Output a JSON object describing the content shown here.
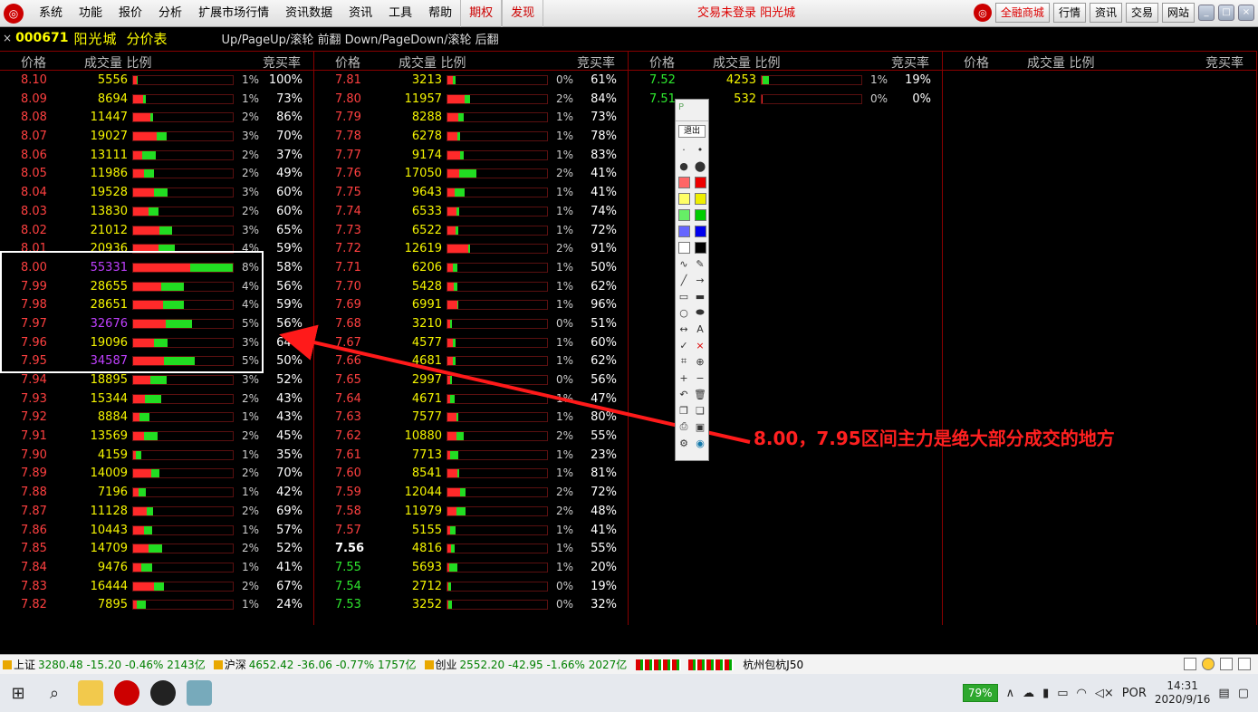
{
  "menubar": {
    "items": [
      "系统",
      "功能",
      "报价",
      "分析",
      "扩展市场行情",
      "资讯数据",
      "资讯",
      "工具",
      "帮助"
    ],
    "red_items": [
      "期权",
      "发现"
    ],
    "login_status": "交易未登录 阳光城",
    "right_buttons": [
      "全融商城",
      "行情",
      "资讯",
      "交易",
      "网站"
    ]
  },
  "title": {
    "close": "×",
    "code": "000671",
    "name": "阳光城",
    "view": "分价表",
    "hint": "Up/PageUp/滚轮 前翻 Down/PageDown/滚轮 后翻"
  },
  "headers": {
    "price": "价格",
    "volume": "成交量 比例",
    "bid_rate": "竞买率"
  },
  "panels": [
    [
      {
        "p": "8.10",
        "v": "5556",
        "r": 0.04,
        "g": 0.005,
        "pct": "1%",
        "rate": "100%"
      },
      {
        "p": "8.09",
        "v": "8694",
        "r": 0.1,
        "g": 0.03,
        "pct": "1%",
        "rate": "73%"
      },
      {
        "p": "8.08",
        "v": "11447",
        "r": 0.17,
        "g": 0.03,
        "pct": "2%",
        "rate": "86%"
      },
      {
        "p": "8.07",
        "v": "19027",
        "r": 0.24,
        "g": 0.1,
        "pct": "3%",
        "rate": "70%"
      },
      {
        "p": "8.06",
        "v": "13111",
        "r": 0.09,
        "g": 0.14,
        "pct": "2%",
        "rate": "37%"
      },
      {
        "p": "8.05",
        "v": "11986",
        "r": 0.11,
        "g": 0.1,
        "pct": "2%",
        "rate": "49%"
      },
      {
        "p": "8.04",
        "v": "19528",
        "r": 0.21,
        "g": 0.14,
        "pct": "3%",
        "rate": "60%"
      },
      {
        "p": "8.03",
        "v": "13830",
        "r": 0.15,
        "g": 0.1,
        "pct": "2%",
        "rate": "60%"
      },
      {
        "p": "8.02",
        "v": "21012",
        "r": 0.26,
        "g": 0.13,
        "pct": "3%",
        "rate": "65%"
      },
      {
        "p": "8.01",
        "v": "20936",
        "r": 0.25,
        "g": 0.17,
        "pct": "4%",
        "rate": "59%"
      },
      {
        "p": "8.00",
        "v": "55331",
        "r": 0.57,
        "g": 0.43,
        "pct": "8%",
        "rate": "58%",
        "purple": true
      },
      {
        "p": "7.99",
        "v": "28655",
        "r": 0.28,
        "g": 0.23,
        "pct": "4%",
        "rate": "56%"
      },
      {
        "p": "7.98",
        "v": "28651",
        "r": 0.3,
        "g": 0.21,
        "pct": "4%",
        "rate": "59%"
      },
      {
        "p": "7.97",
        "v": "32676",
        "r": 0.33,
        "g": 0.26,
        "pct": "5%",
        "rate": "56%",
        "purple": true
      },
      {
        "p": "7.96",
        "v": "19096",
        "r": 0.21,
        "g": 0.14,
        "pct": "3%",
        "rate": "64%"
      },
      {
        "p": "7.95",
        "v": "34587",
        "r": 0.31,
        "g": 0.31,
        "pct": "5%",
        "rate": "50%",
        "purple": true
      },
      {
        "p": "7.94",
        "v": "18895",
        "r": 0.17,
        "g": 0.17,
        "pct": "3%",
        "rate": "52%"
      },
      {
        "p": "7.93",
        "v": "15344",
        "r": 0.12,
        "g": 0.16,
        "pct": "2%",
        "rate": "43%"
      },
      {
        "p": "7.92",
        "v": "8884",
        "r": 0.06,
        "g": 0.1,
        "pct": "1%",
        "rate": "43%"
      },
      {
        "p": "7.91",
        "v": "13569",
        "r": 0.11,
        "g": 0.14,
        "pct": "2%",
        "rate": "45%"
      },
      {
        "p": "7.90",
        "v": "4159",
        "r": 0.03,
        "g": 0.05,
        "pct": "1%",
        "rate": "35%"
      },
      {
        "p": "7.89",
        "v": "14009",
        "r": 0.18,
        "g": 0.08,
        "pct": "2%",
        "rate": "70%"
      },
      {
        "p": "7.88",
        "v": "7196",
        "r": 0.05,
        "g": 0.08,
        "pct": "1%",
        "rate": "42%"
      },
      {
        "p": "7.87",
        "v": "11128",
        "r": 0.14,
        "g": 0.06,
        "pct": "2%",
        "rate": "69%"
      },
      {
        "p": "7.86",
        "v": "10443",
        "r": 0.11,
        "g": 0.08,
        "pct": "1%",
        "rate": "57%"
      },
      {
        "p": "7.85",
        "v": "14709",
        "r": 0.15,
        "g": 0.14,
        "pct": "2%",
        "rate": "52%"
      },
      {
        "p": "7.84",
        "v": "9476",
        "r": 0.08,
        "g": 0.11,
        "pct": "1%",
        "rate": "41%"
      },
      {
        "p": "7.83",
        "v": "16444",
        "r": 0.21,
        "g": 0.1,
        "pct": "2%",
        "rate": "67%"
      },
      {
        "p": "7.82",
        "v": "7895",
        "r": 0.04,
        "g": 0.09,
        "pct": "1%",
        "rate": "24%"
      }
    ],
    [
      {
        "p": "7.81",
        "v": "3213",
        "r": 0.05,
        "g": 0.03,
        "pct": "0%",
        "rate": "61%"
      },
      {
        "p": "7.80",
        "v": "11957",
        "r": 0.17,
        "g": 0.06,
        "pct": "2%",
        "rate": "84%"
      },
      {
        "p": "7.79",
        "v": "8288",
        "r": 0.11,
        "g": 0.05,
        "pct": "1%",
        "rate": "73%"
      },
      {
        "p": "7.78",
        "v": "6278",
        "r": 0.1,
        "g": 0.03,
        "pct": "1%",
        "rate": "78%"
      },
      {
        "p": "7.77",
        "v": "9174",
        "r": 0.13,
        "g": 0.03,
        "pct": "1%",
        "rate": "83%"
      },
      {
        "p": "7.76",
        "v": "17050",
        "r": 0.12,
        "g": 0.17,
        "pct": "2%",
        "rate": "41%"
      },
      {
        "p": "7.75",
        "v": "9643",
        "r": 0.07,
        "g": 0.1,
        "pct": "1%",
        "rate": "41%"
      },
      {
        "p": "7.74",
        "v": "6533",
        "r": 0.09,
        "g": 0.03,
        "pct": "1%",
        "rate": "74%"
      },
      {
        "p": "7.73",
        "v": "6522",
        "r": 0.08,
        "g": 0.03,
        "pct": "1%",
        "rate": "72%"
      },
      {
        "p": "7.72",
        "v": "12619",
        "r": 0.21,
        "g": 0.02,
        "pct": "2%",
        "rate": "91%"
      },
      {
        "p": "7.71",
        "v": "6206",
        "r": 0.05,
        "g": 0.05,
        "pct": "1%",
        "rate": "50%"
      },
      {
        "p": "7.70",
        "v": "5428",
        "r": 0.06,
        "g": 0.04,
        "pct": "1%",
        "rate": "62%"
      },
      {
        "p": "7.69",
        "v": "6991",
        "r": 0.1,
        "g": 0.01,
        "pct": "1%",
        "rate": "96%"
      },
      {
        "p": "7.68",
        "v": "3210",
        "r": 0.03,
        "g": 0.02,
        "pct": "0%",
        "rate": "51%"
      },
      {
        "p": "7.67",
        "v": "4577",
        "r": 0.05,
        "g": 0.03,
        "pct": "1%",
        "rate": "60%"
      },
      {
        "p": "7.66",
        "v": "4681",
        "r": 0.05,
        "g": 0.03,
        "pct": "1%",
        "rate": "62%"
      },
      {
        "p": "7.65",
        "v": "2997",
        "r": 0.03,
        "g": 0.02,
        "pct": "0%",
        "rate": "56%"
      },
      {
        "p": "7.64",
        "v": "4671",
        "r": 0.03,
        "g": 0.04,
        "pct": "1%",
        "rate": "47%"
      },
      {
        "p": "7.63",
        "v": "7577",
        "r": 0.09,
        "g": 0.02,
        "pct": "1%",
        "rate": "80%"
      },
      {
        "p": "7.62",
        "v": "10880",
        "r": 0.09,
        "g": 0.07,
        "pct": "2%",
        "rate": "55%"
      },
      {
        "p": "7.61",
        "v": "7713",
        "r": 0.03,
        "g": 0.08,
        "pct": "1%",
        "rate": "23%"
      },
      {
        "p": "7.60",
        "v": "8541",
        "r": 0.1,
        "g": 0.02,
        "pct": "1%",
        "rate": "81%"
      },
      {
        "p": "7.59",
        "v": "12044",
        "r": 0.13,
        "g": 0.05,
        "pct": "2%",
        "rate": "72%"
      },
      {
        "p": "7.58",
        "v": "11979",
        "r": 0.09,
        "g": 0.09,
        "pct": "2%",
        "rate": "48%"
      },
      {
        "p": "7.57",
        "v": "5155",
        "r": 0.03,
        "g": 0.05,
        "pct": "1%",
        "rate": "41%"
      },
      {
        "p": "7.56",
        "v": "4816",
        "r": 0.04,
        "g": 0.03,
        "pct": "1%",
        "rate": "55%",
        "white": true
      },
      {
        "p": "7.55",
        "v": "5693",
        "r": 0.02,
        "g": 0.08,
        "pct": "1%",
        "rate": "20%",
        "green": true
      },
      {
        "p": "7.54",
        "v": "2712",
        "r": 0.01,
        "g": 0.03,
        "pct": "0%",
        "rate": "19%",
        "green": true
      },
      {
        "p": "7.53",
        "v": "3252",
        "r": 0.01,
        "g": 0.04,
        "pct": "0%",
        "rate": "32%",
        "green": true
      }
    ],
    [
      {
        "p": "7.52",
        "v": "4253",
        "r": 0.01,
        "g": 0.06,
        "pct": "1%",
        "rate": "19%",
        "green": true
      },
      {
        "p": "7.51",
        "v": "532",
        "r": 0.005,
        "g": 0.0,
        "pct": "0%",
        "rate": "0%",
        "green": true
      }
    ],
    []
  ],
  "annotation": "8.00，7.95区间主力是绝大部分成交的地方",
  "drawbar": {
    "exit": "退出",
    "icon_p": "P"
  },
  "ticker": {
    "items": [
      {
        "name": "上证",
        "val": "3280.48 -15.20 -0.46% 2143亿"
      },
      {
        "name": "沪深",
        "val": "4652.42 -36.06 -0.77% 1757亿"
      },
      {
        "name": "创业",
        "val": "2552.20 -42.95 -1.66% 2027亿"
      }
    ],
    "hz": "杭州包杭J50"
  },
  "taskbar": {
    "battery": "79%",
    "lang": "POR",
    "time": "14:31",
    "date": "2020/9/16"
  },
  "colors": {
    "up": "#ff4040",
    "down": "#2ee82e",
    "volume": "#f5f500",
    "accent": "#8a0000"
  }
}
